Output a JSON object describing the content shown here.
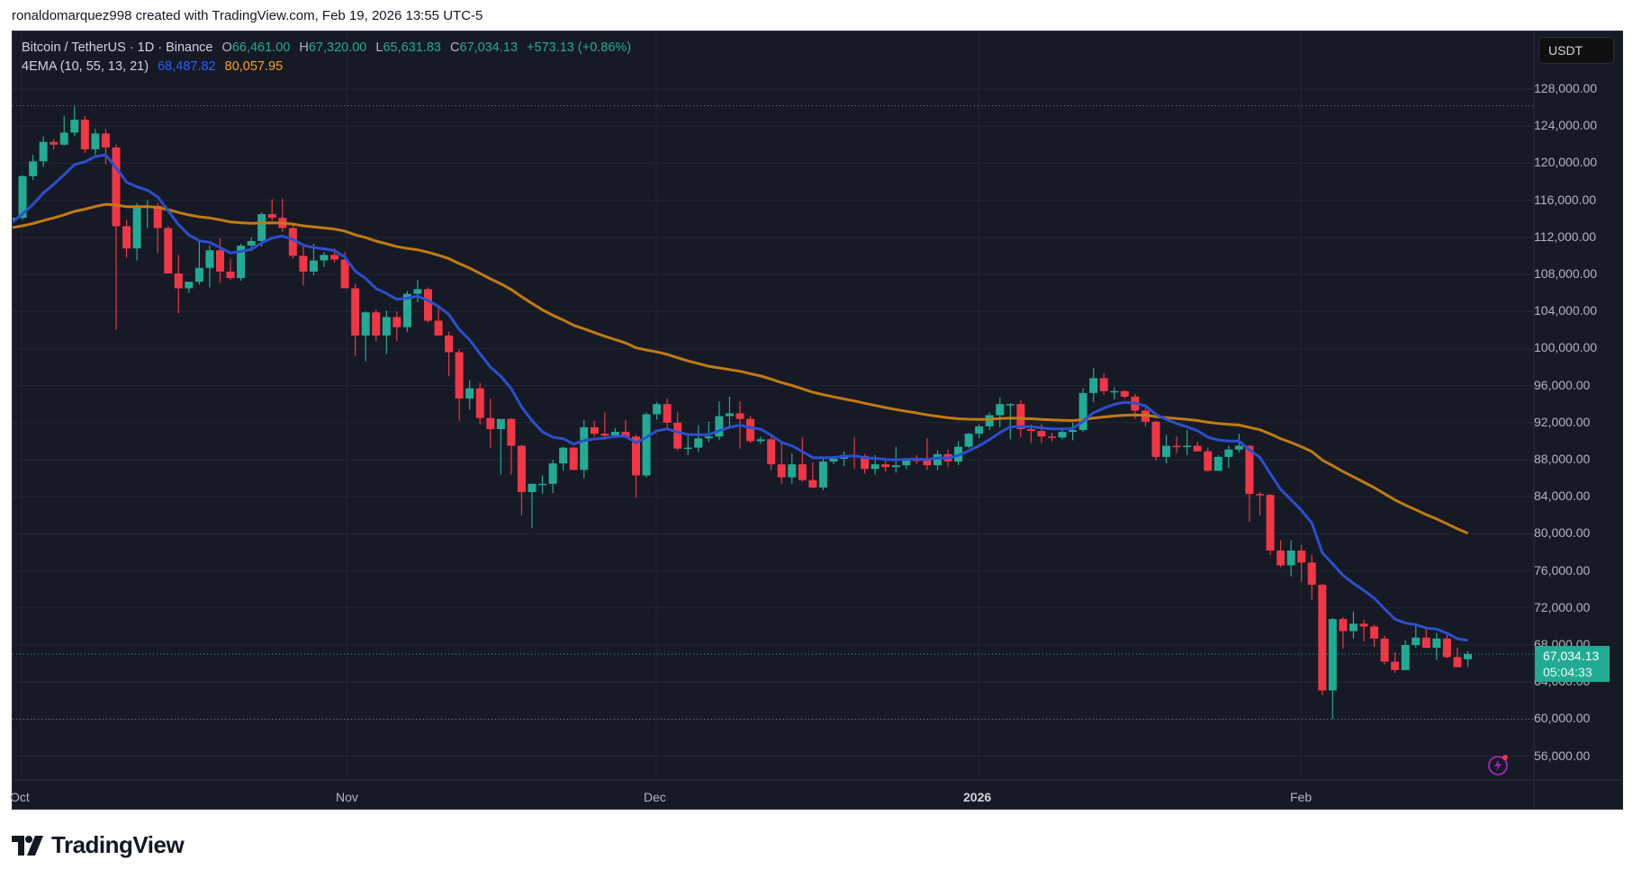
{
  "attribution": "ronaldomarquez998 created with TradingView.com, Feb 19, 2026 13:55 UTC-5",
  "legend": {
    "symbol": "Bitcoin / TetherUS · 1D · Binance",
    "o_label": "O",
    "o_value": "66,461.00",
    "h_label": "H",
    "h_value": "67,320.00",
    "l_label": "L",
    "l_value": "65,631.83",
    "c_label": "C",
    "c_value": "67,034.13",
    "change": "+573.13 (+0.86%)",
    "indicator": "4EMA (10, 55, 13, 21)",
    "ema_fast_value": "68,487.82",
    "ema_slow_value": "80,057.95"
  },
  "price_axis": {
    "currency": "USDT",
    "labels": [
      "128,000.00",
      "124,000.00",
      "120,000.00",
      "116,000.00",
      "112,000.00",
      "108,000.00",
      "104,000.00",
      "100,000.00",
      "96,000.00",
      "92,000.00",
      "88,000.00",
      "84,000.00",
      "80,000.00",
      "76,000.00",
      "72,000.00",
      "68,000.00",
      "64,000.00",
      "60,000.00",
      "56,000.00"
    ],
    "last_price": "67,034.13",
    "countdown": "05:04:33"
  },
  "time_axis": {
    "labels": [
      {
        "text": "Oct",
        "bold": false
      },
      {
        "text": "Nov",
        "bold": false
      },
      {
        "text": "Dec",
        "bold": false
      },
      {
        "text": "2026",
        "bold": true
      },
      {
        "text": "Feb",
        "bold": false
      }
    ]
  },
  "logo": {
    "text": "TradingView"
  },
  "colors": {
    "background": "#161a25",
    "grid": "#232734",
    "up": "#22ab94",
    "down": "#f23645",
    "ema_fast": "#2b4fcf",
    "ema_slow": "#c27a12",
    "axis_text": "#b2b5be",
    "alert": "#9c27b0"
  },
  "chart_data": {
    "type": "candlestick",
    "title": "Bitcoin / TetherUS · 1D · Binance",
    "xlabel": "",
    "ylabel": "USDT",
    "ylim": [
      53500,
      131000
    ],
    "grid": true,
    "x_ticks": [
      "Oct",
      "Nov",
      "Dec",
      "2026",
      "Feb"
    ],
    "y_ticks": [
      128000,
      124000,
      120000,
      116000,
      112000,
      108000,
      104000,
      100000,
      96000,
      92000,
      88000,
      84000,
      80000,
      76000,
      72000,
      68000,
      64000,
      60000,
      56000
    ],
    "start_date": "2025-09-30",
    "reference_lines": [
      126200,
      60000
    ],
    "ohlc": [
      [
        113800,
        114600,
        113000,
        114100
      ],
      [
        114100,
        118700,
        113900,
        118600
      ],
      [
        118600,
        120900,
        118200,
        120200
      ],
      [
        120200,
        122900,
        119600,
        122300
      ],
      [
        122300,
        122600,
        121500,
        122000
      ],
      [
        122000,
        125100,
        121900,
        123300
      ],
      [
        123300,
        126200,
        122900,
        124700
      ],
      [
        124700,
        125100,
        121100,
        121500
      ],
      [
        121500,
        123700,
        120900,
        123200
      ],
      [
        123200,
        123700,
        119900,
        121700
      ],
      [
        121700,
        122000,
        102000,
        113200
      ],
      [
        113200,
        113900,
        109800,
        110800
      ],
      [
        110800,
        115700,
        109500,
        115200
      ],
      [
        115200,
        116000,
        113000,
        115400
      ],
      [
        115400,
        115700,
        110300,
        113000
      ],
      [
        113000,
        113200,
        110000,
        108100
      ],
      [
        108100,
        110100,
        103800,
        106500
      ],
      [
        106500,
        107200,
        106000,
        107200
      ],
      [
        107200,
        111700,
        106900,
        108700
      ],
      [
        108700,
        111100,
        106600,
        110600
      ],
      [
        110600,
        111900,
        107100,
        108300
      ],
      [
        108300,
        109700,
        107400,
        107600
      ],
      [
        107600,
        111300,
        107300,
        111100
      ],
      [
        111100,
        112000,
        110500,
        111600
      ],
      [
        111600,
        114700,
        111000,
        114500
      ],
      [
        114500,
        116100,
        113800,
        114100
      ],
      [
        114100,
        116200,
        112600,
        113000
      ],
      [
        113000,
        113600,
        109700,
        110000
      ],
      [
        110000,
        111000,
        106800,
        108300
      ],
      [
        108300,
        111300,
        107900,
        109500
      ],
      [
        109500,
        110400,
        108800,
        110100
      ],
      [
        110100,
        110800,
        109300,
        109600
      ],
      [
        109600,
        110400,
        107400,
        106500
      ],
      [
        106500,
        107000,
        99200,
        101400
      ],
      [
        101400,
        104000,
        98600,
        103900
      ],
      [
        103900,
        104200,
        100800,
        101400
      ],
      [
        101400,
        104100,
        99400,
        103400
      ],
      [
        103400,
        104000,
        100800,
        102300
      ],
      [
        102300,
        106200,
        101800,
        105900
      ],
      [
        105900,
        107400,
        105000,
        106400
      ],
      [
        106400,
        106600,
        102800,
        103000
      ],
      [
        103000,
        104500,
        101900,
        101400
      ],
      [
        101400,
        101800,
        97000,
        99600
      ],
      [
        99600,
        99900,
        92200,
        94600
      ],
      [
        94600,
        96600,
        93400,
        95700
      ],
      [
        95700,
        96300,
        91800,
        92500
      ],
      [
        92500,
        94600,
        89300,
        91300
      ],
      [
        91300,
        92200,
        86400,
        92400
      ],
      [
        92400,
        92500,
        86400,
        89500
      ],
      [
        89500,
        89600,
        82000,
        84500
      ],
      [
        84500,
        85300,
        80600,
        85400
      ],
      [
        85400,
        86300,
        84300,
        85400
      ],
      [
        85400,
        88000,
        84400,
        87600
      ],
      [
        87600,
        89400,
        86800,
        89300
      ],
      [
        89300,
        89400,
        86900,
        86900
      ],
      [
        86900,
        92300,
        86000,
        91500
      ],
      [
        91500,
        92200,
        90500,
        90800
      ],
      [
        90800,
        93100,
        90100,
        90600
      ],
      [
        90600,
        91400,
        90400,
        91000
      ],
      [
        91000,
        92300,
        90300,
        90500
      ],
      [
        90500,
        90700,
        83900,
        86300
      ],
      [
        86300,
        93100,
        86100,
        92900
      ],
      [
        92900,
        94200,
        92300,
        94000
      ],
      [
        94000,
        94600,
        91300,
        92000
      ],
      [
        92000,
        93100,
        89000,
        89200
      ],
      [
        89200,
        90700,
        88500,
        89300
      ],
      [
        89300,
        91700,
        88800,
        90300
      ],
      [
        90300,
        92100,
        89900,
        90500
      ],
      [
        90500,
        94300,
        90100,
        92700
      ],
      [
        92700,
        94800,
        91500,
        93000
      ],
      [
        93000,
        94300,
        89200,
        92400
      ],
      [
        92400,
        92700,
        89800,
        90000
      ],
      [
        90000,
        90500,
        89700,
        90200
      ],
      [
        90200,
        90500,
        86900,
        87500
      ],
      [
        87500,
        89800,
        85400,
        86100
      ],
      [
        86100,
        88700,
        85400,
        87500
      ],
      [
        87500,
        90400,
        85600,
        85800
      ],
      [
        85800,
        87700,
        84900,
        85000
      ],
      [
        85000,
        88300,
        84700,
        87800
      ],
      [
        87800,
        88200,
        87500,
        88100
      ],
      [
        88100,
        88900,
        87300,
        88500
      ],
      [
        88500,
        90400,
        87000,
        88400
      ],
      [
        88400,
        88600,
        86500,
        87000
      ],
      [
        87000,
        88500,
        86400,
        87500
      ],
      [
        87500,
        88100,
        86700,
        87200
      ],
      [
        87200,
        89400,
        86600,
        87400
      ],
      [
        87400,
        88200,
        87000,
        88000
      ],
      [
        88000,
        88500,
        87500,
        87900
      ],
      [
        87900,
        90300,
        86900,
        87400
      ],
      [
        87400,
        89000,
        86900,
        88600
      ],
      [
        88600,
        89100,
        87200,
        87800
      ],
      [
        87800,
        90000,
        87400,
        89400
      ],
      [
        89400,
        90900,
        89200,
        90800
      ],
      [
        90800,
        91800,
        90300,
        91600
      ],
      [
        91600,
        93100,
        91200,
        92800
      ],
      [
        92800,
        94700,
        91500,
        94000
      ],
      [
        94000,
        94100,
        90200,
        94000
      ],
      [
        94000,
        94400,
        90400,
        91300
      ],
      [
        91300,
        91800,
        89800,
        91100
      ],
      [
        91100,
        91900,
        89800,
        90500
      ],
      [
        90500,
        90900,
        90000,
        90400
      ],
      [
        90400,
        91400,
        90200,
        91000
      ],
      [
        91000,
        92000,
        90100,
        91200
      ],
      [
        91200,
        95700,
        91000,
        95200
      ],
      [
        95200,
        97900,
        94200,
        96800
      ],
      [
        96800,
        97300,
        95000,
        95400
      ],
      [
        95400,
        95800,
        94500,
        95400
      ],
      [
        95400,
        95500,
        94600,
        94800
      ],
      [
        94800,
        95100,
        92400,
        93300
      ],
      [
        93300,
        93600,
        91600,
        92100
      ],
      [
        92100,
        92200,
        87900,
        88300
      ],
      [
        88300,
        90700,
        87600,
        89500
      ],
      [
        89500,
        90500,
        88700,
        89400
      ],
      [
        89400,
        91200,
        88500,
        89500
      ],
      [
        89500,
        89900,
        89000,
        88900
      ],
      [
        88900,
        89300,
        86700,
        86800
      ],
      [
        86800,
        88500,
        86800,
        88300
      ],
      [
        88300,
        89500,
        87100,
        89100
      ],
      [
        89100,
        90800,
        88800,
        89500
      ],
      [
        89500,
        89600,
        81300,
        84300
      ],
      [
        84300,
        84500,
        82000,
        84200
      ],
      [
        84200,
        84300,
        77700,
        78200
      ],
      [
        78200,
        79300,
        76400,
        76600
      ],
      [
        76600,
        79300,
        75400,
        78200
      ],
      [
        78200,
        78800,
        74800,
        76900
      ],
      [
        76900,
        77700,
        72900,
        74500
      ],
      [
        74500,
        74600,
        62600,
        63100
      ],
      [
        63100,
        70900,
        60000,
        70800
      ],
      [
        70800,
        71000,
        67600,
        69500
      ],
      [
        69500,
        71600,
        68700,
        70300
      ],
      [
        70300,
        70700,
        68400,
        70000
      ],
      [
        70000,
        70200,
        67800,
        68700
      ],
      [
        68700,
        69000,
        65900,
        66200
      ],
      [
        66200,
        67200,
        65000,
        65300
      ],
      [
        65300,
        68500,
        65500,
        68000
      ],
      [
        68000,
        70300,
        67700,
        68800
      ],
      [
        68800,
        69900,
        67700,
        67700
      ],
      [
        67700,
        69300,
        66400,
        68700
      ],
      [
        68700,
        69100,
        66600,
        66700
      ],
      [
        66700,
        67700,
        65800,
        65600
      ],
      [
        66461,
        67320,
        65631.83,
        67034.13
      ]
    ],
    "series": [
      {
        "name": "EMA 10",
        "color": "#2b4fcf",
        "last_value": 68487.82
      },
      {
        "name": "EMA 55",
        "color": "#c27a12",
        "last_value": 80057.95
      }
    ]
  }
}
